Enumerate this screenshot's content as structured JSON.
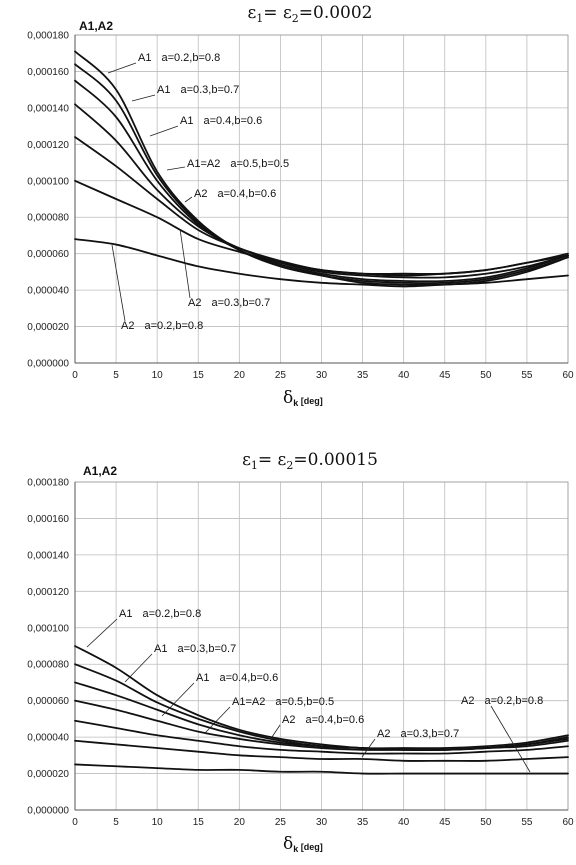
{
  "chart_data": [
    {
      "type": "line",
      "title": "ε₁= ε₂=0.0002",
      "title_main": "ε",
      "title_rest": "= ε",
      "title_value": "=0.0002",
      "title_sub1": "1",
      "title_sub2": "2",
      "ylabel": "A1,A2",
      "xlabel": "δ",
      "xlabel_sub": "k",
      "xlabel_unit": "[deg]",
      "xlim": [
        0,
        60
      ],
      "ylim": [
        0,
        0.00018
      ],
      "xticks": [
        0,
        5,
        10,
        15,
        20,
        25,
        30,
        35,
        40,
        45,
        50,
        55,
        60
      ],
      "yticks": [
        0,
        2e-05,
        4e-05,
        6e-05,
        8e-05,
        0.0001,
        0.00012,
        0.00014,
        0.00016,
        0.00018
      ],
      "ytick_labels": [
        "0,000000",
        "0,000020",
        "0,000040",
        "0,000060",
        "0,000080",
        "0,000100",
        "0,000120",
        "0,000140",
        "0,000160",
        "0,000180"
      ],
      "grid": true,
      "x": [
        0,
        5,
        10,
        15,
        20,
        25,
        30,
        35,
        40,
        45,
        50,
        55,
        60
      ],
      "series": [
        {
          "values": [
            0.000171,
            0.00015,
            0.000105,
            7.8e-05,
            6.2e-05,
            5.3e-05,
            4.8e-05,
            4.4e-05,
            4.3e-05,
            4.3e-05,
            4.5e-05,
            5e-05,
            5.8e-05
          ]
        },
        {
          "values": [
            0.000164,
            0.000144,
            0.000103,
            7.7e-05,
            6.2e-05,
            5.3e-05,
            4.8e-05,
            4.5e-05,
            4.4e-05,
            4.4e-05,
            4.6e-05,
            5.1e-05,
            5.8e-05
          ]
        },
        {
          "values": [
            0.000155,
            0.000135,
            0.0001,
            7.6e-05,
            6.2e-05,
            5.4e-05,
            4.9e-05,
            4.6e-05,
            4.5e-05,
            4.5e-05,
            4.7e-05,
            5.2e-05,
            5.9e-05
          ]
        },
        {
          "values": [
            0.000142,
            0.000122,
            9.5e-05,
            7.5e-05,
            6.3e-05,
            5.5e-05,
            5e-05,
            4.8e-05,
            4.7e-05,
            4.7e-05,
            4.9e-05,
            5.3e-05,
            5.9e-05
          ]
        },
        {
          "values": [
            0.000124,
            0.000108,
            9e-05,
            7.3e-05,
            6.3e-05,
            5.6e-05,
            5.1e-05,
            4.9e-05,
            4.9e-05,
            4.9e-05,
            5.1e-05,
            5.5e-05,
            6e-05
          ]
        },
        {
          "values": [
            0.0001,
            9e-05,
            8e-05,
            6.8e-05,
            6.1e-05,
            5.5e-05,
            5.1e-05,
            4.9e-05,
            4.8e-05,
            4.9e-05,
            5.1e-05,
            5.5e-05,
            5.9e-05
          ]
        },
        {
          "values": [
            6.8e-05,
            6.5e-05,
            5.9e-05,
            5.3e-05,
            4.9e-05,
            4.6e-05,
            4.4e-05,
            4.3e-05,
            4.2e-05,
            4.3e-05,
            4.4e-05,
            4.6e-05,
            4.8e-05
          ]
        }
      ],
      "annotations": [
        {
          "series": "A1",
          "params": "a=0.2,b=0.8"
        },
        {
          "series": "A1",
          "params": "a=0.3,b=0.7"
        },
        {
          "series": "A1",
          "params": "a=0.4,b=0.6"
        },
        {
          "series": "A1=A2",
          "params": "a=0.5,b=0.5"
        },
        {
          "series": "A2",
          "params": "a=0.4,b=0.6"
        },
        {
          "series": "A2",
          "params": "a=0.3,b=0.7"
        },
        {
          "series": "A2",
          "params": "a=0.2,b=0.8"
        }
      ]
    },
    {
      "type": "line",
      "title": "ε₁= ε₂=0.00015",
      "title_main": "ε",
      "title_rest": "= ε",
      "title_value": "=0.00015",
      "title_sub1": "1",
      "title_sub2": "2",
      "ylabel": "A1,A2",
      "xlabel": "δ",
      "xlabel_sub": "k",
      "xlabel_unit": "[deg]",
      "xlim": [
        0,
        60
      ],
      "ylim": [
        0,
        0.00018
      ],
      "xticks": [
        0,
        5,
        10,
        15,
        20,
        25,
        30,
        35,
        40,
        45,
        50,
        55,
        60
      ],
      "yticks": [
        0,
        2e-05,
        4e-05,
        6e-05,
        8e-05,
        0.0001,
        0.00012,
        0.00014,
        0.00016,
        0.00018
      ],
      "ytick_labels": [
        "0,000000",
        "0,000020",
        "0,000040",
        "0,000060",
        "0,000080",
        "0,000100",
        "0,000120",
        "0,000140",
        "0,000160",
        "0,000180"
      ],
      "grid": true,
      "x": [
        0,
        5,
        10,
        15,
        20,
        25,
        30,
        35,
        40,
        45,
        50,
        55,
        60
      ],
      "series": [
        {
          "values": [
            9e-05,
            7.8e-05,
            6.3e-05,
            5.2e-05,
            4.4e-05,
            3.9e-05,
            3.6e-05,
            3.4e-05,
            3.4e-05,
            3.4e-05,
            3.5e-05,
            3.7e-05,
            4.1e-05
          ]
        },
        {
          "values": [
            8e-05,
            7.1e-05,
            5.9e-05,
            5e-05,
            4.3e-05,
            3.8e-05,
            3.5e-05,
            3.4e-05,
            3.3e-05,
            3.3e-05,
            3.4e-05,
            3.6e-05,
            4e-05
          ]
        },
        {
          "values": [
            7e-05,
            6.3e-05,
            5.5e-05,
            4.7e-05,
            4.1e-05,
            3.7e-05,
            3.5e-05,
            3.4e-05,
            3.3e-05,
            3.3e-05,
            3.4e-05,
            3.6e-05,
            3.9e-05
          ]
        },
        {
          "values": [
            6e-05,
            5.5e-05,
            4.9e-05,
            4.3e-05,
            3.9e-05,
            3.6e-05,
            3.4e-05,
            3.3e-05,
            3.3e-05,
            3.3e-05,
            3.4e-05,
            3.5e-05,
            3.8e-05
          ]
        },
        {
          "values": [
            4.9e-05,
            4.5e-05,
            4.1e-05,
            3.8e-05,
            3.5e-05,
            3.3e-05,
            3.2e-05,
            3.1e-05,
            3.1e-05,
            3.1e-05,
            3.2e-05,
            3.3e-05,
            3.5e-05
          ]
        },
        {
          "values": [
            3.8e-05,
            3.6e-05,
            3.4e-05,
            3.2e-05,
            3e-05,
            2.9e-05,
            2.8e-05,
            2.8e-05,
            2.7e-05,
            2.7e-05,
            2.7e-05,
            2.8e-05,
            2.9e-05
          ]
        },
        {
          "values": [
            2.5e-05,
            2.4e-05,
            2.3e-05,
            2.2e-05,
            2.2e-05,
            2.1e-05,
            2.1e-05,
            2e-05,
            2e-05,
            2e-05,
            2e-05,
            2e-05,
            2e-05
          ]
        }
      ],
      "annotations": [
        {
          "series": "A1",
          "params": "a=0.2,b=0.8"
        },
        {
          "series": "A1",
          "params": "a=0.3,b=0.7"
        },
        {
          "series": "A1",
          "params": "a=0.4,b=0.6"
        },
        {
          "series": "A1=A2",
          "params": "a=0.5,b=0.5"
        },
        {
          "series": "A2",
          "params": "a=0.4,b=0.6"
        },
        {
          "series": "A2",
          "params": "a=0.3,b=0.7"
        },
        {
          "series": "A2",
          "params": "a=0.2,b=0.8"
        }
      ]
    }
  ]
}
